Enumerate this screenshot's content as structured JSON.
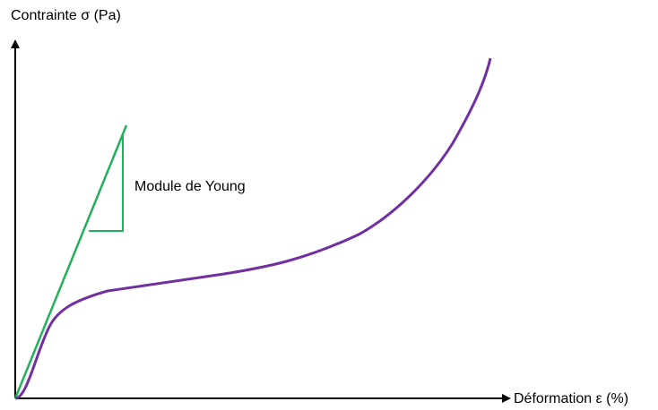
{
  "diagram": {
    "y_axis_label": "Contrainte σ (Pa)",
    "x_axis_label": "Déformation ε (%)",
    "annotation": "Module de Young"
  }
}
